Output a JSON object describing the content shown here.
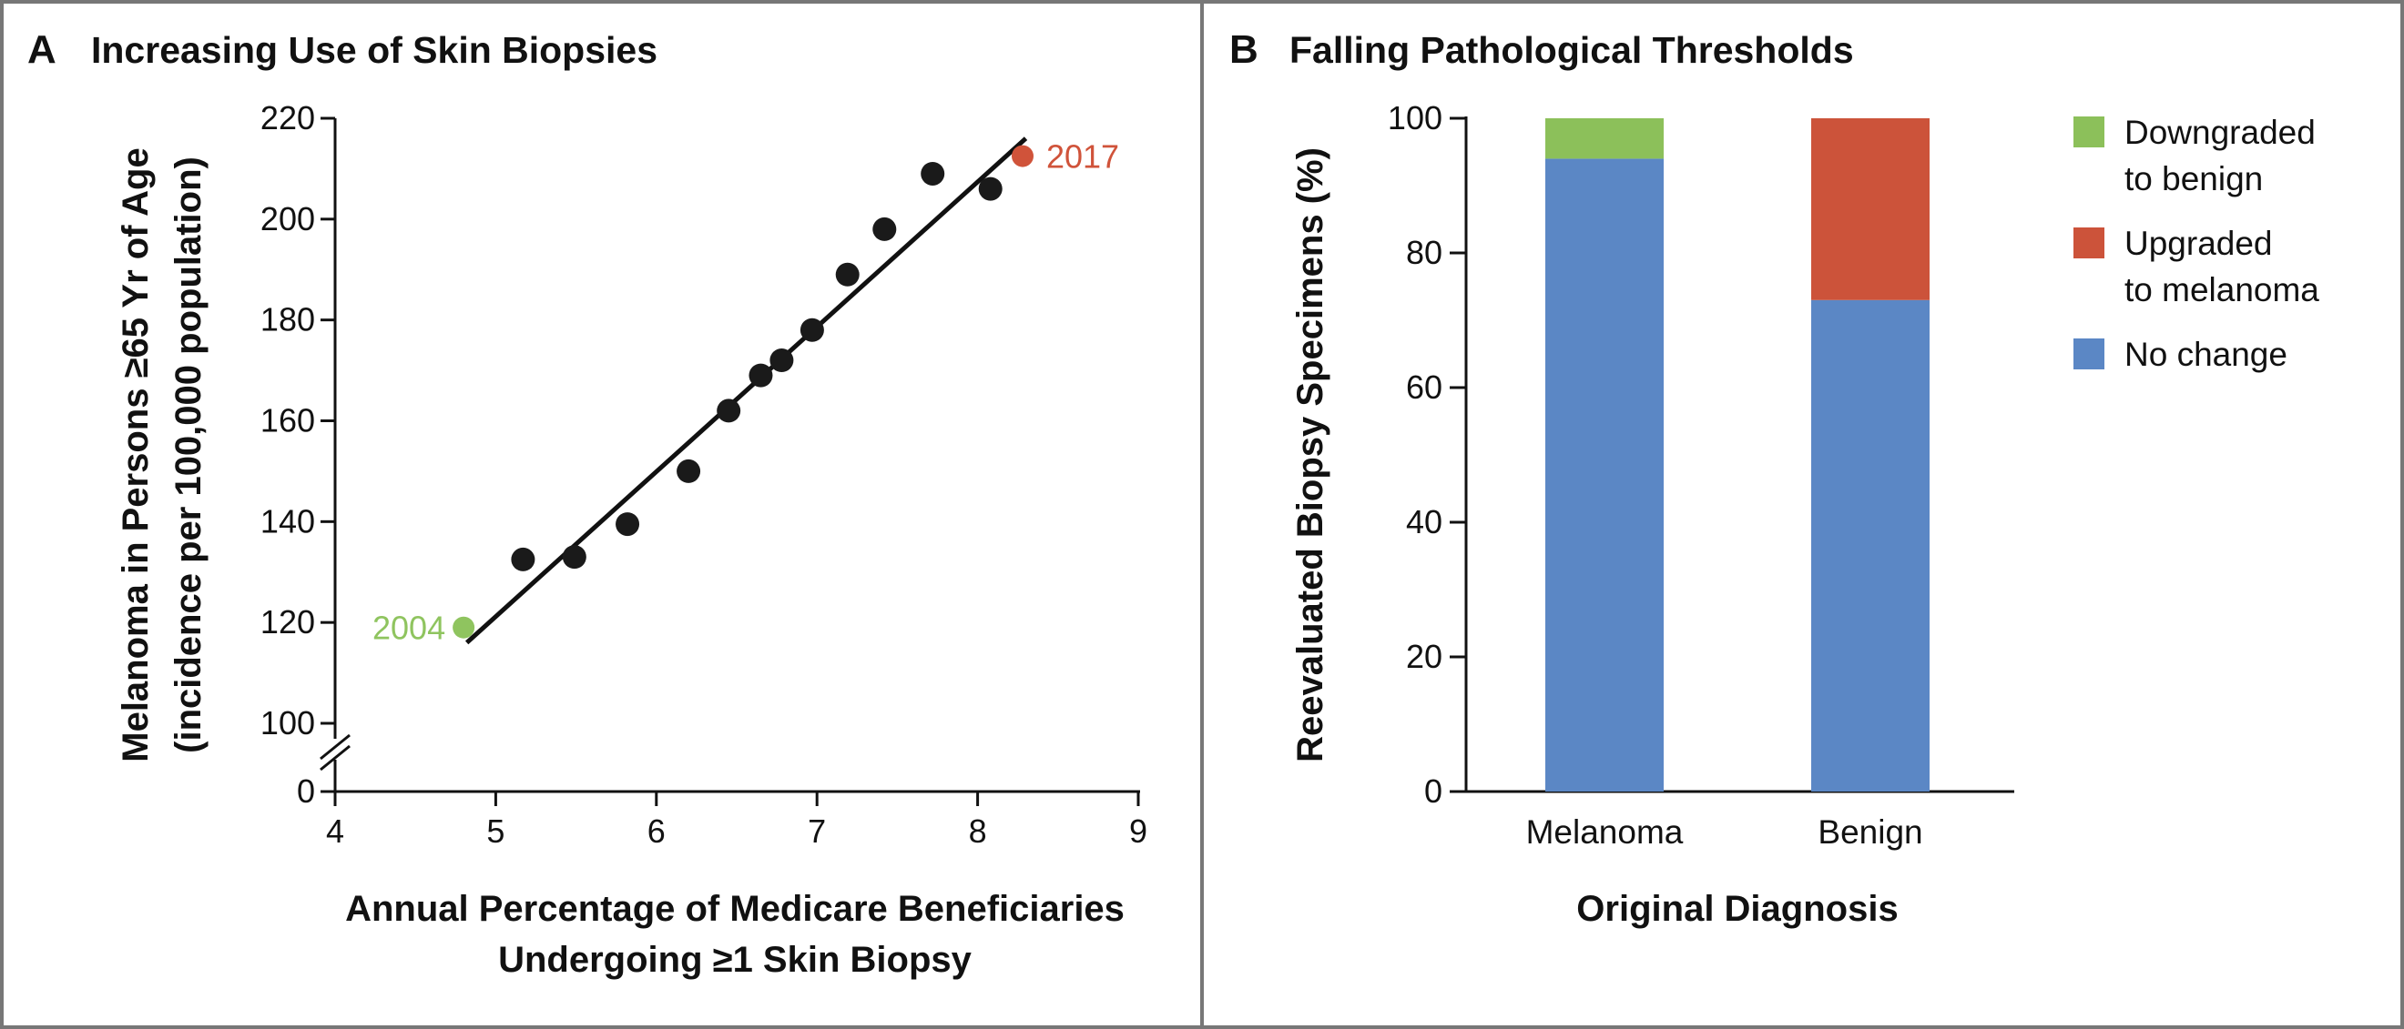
{
  "colors": {
    "frame": "#777777",
    "point": "#1a1a1a",
    "start_point": "#8fc45f",
    "end_point": "#d0533a",
    "downgraded": "#8cc05a",
    "upgraded": "#cc533a",
    "no_change": "#5b87c5"
  },
  "panel_a": {
    "letter": "A",
    "title": "Increasing Use of Skin Biopsies"
  },
  "panel_b": {
    "letter": "B",
    "title": "Falling Pathological Thresholds"
  },
  "chart_data": [
    {
      "type": "scatter",
      "title": "Increasing Use of Skin Biopsies",
      "xlabel": [
        "Annual Percentage of Medicare Beneficiaries",
        "Undergoing ≥1 Skin Biopsy"
      ],
      "ylabel": [
        "Melanoma in Persons ≥65 Yr of Age",
        "(incidence per 100,000 population)"
      ],
      "xlim": [
        4,
        9
      ],
      "ylim": [
        100,
        220
      ],
      "y_axis_break": true,
      "x_ticks": [
        "4",
        "5",
        "6",
        "7",
        "8",
        "9"
      ],
      "y_ticks": [
        "0",
        "100",
        "120",
        "140",
        "160",
        "180",
        "200",
        "220"
      ],
      "points": [
        {
          "x": 4.8,
          "y": 119,
          "label": "2004"
        },
        {
          "x": 5.17,
          "y": 132.5
        },
        {
          "x": 5.49,
          "y": 133
        },
        {
          "x": 5.82,
          "y": 139.5
        },
        {
          "x": 6.2,
          "y": 150
        },
        {
          "x": 6.45,
          "y": 162
        },
        {
          "x": 6.65,
          "y": 169
        },
        {
          "x": 6.78,
          "y": 172
        },
        {
          "x": 6.97,
          "y": 178
        },
        {
          "x": 7.19,
          "y": 189
        },
        {
          "x": 7.42,
          "y": 198
        },
        {
          "x": 7.72,
          "y": 209
        },
        {
          "x": 8.08,
          "y": 206
        },
        {
          "x": 8.28,
          "y": 212.5,
          "label": "2017"
        }
      ],
      "trend_line": {
        "x": [
          4.82,
          8.3
        ],
        "y": [
          116,
          216
        ]
      }
    },
    {
      "type": "bar",
      "stacked": true,
      "title": "Falling Pathological Thresholds",
      "xlabel": "Original Diagnosis",
      "ylabel": "Reevaluated Biopsy Specimens (%)",
      "ylim": [
        0,
        100
      ],
      "y_ticks": [
        "0",
        "20",
        "40",
        "60",
        "80",
        "100"
      ],
      "categories": [
        "Melanoma",
        "Benign"
      ],
      "series": [
        {
          "name": "No change",
          "color_key": "no_change",
          "values": [
            94,
            73
          ]
        },
        {
          "name": "Upgraded to melanoma",
          "color_key": "upgraded",
          "values": [
            0,
            27
          ]
        },
        {
          "name": "Downgraded to benign",
          "color_key": "downgraded",
          "values": [
            6,
            0
          ]
        }
      ],
      "legend": [
        {
          "lines": [
            "Downgraded",
            "to benign"
          ],
          "color_key": "downgraded"
        },
        {
          "lines": [
            "Upgraded",
            "to melanoma"
          ],
          "color_key": "upgraded"
        },
        {
          "lines": [
            "No change"
          ],
          "color_key": "no_change"
        }
      ],
      "legend_position": "right"
    }
  ]
}
